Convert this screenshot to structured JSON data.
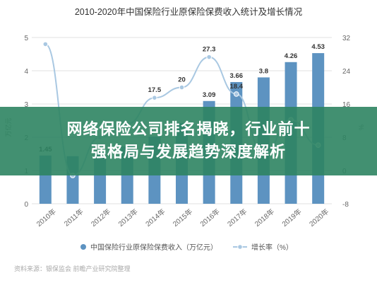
{
  "chart_data": {
    "type": "bar",
    "title": "2010-2020年中国保险行业原保险保费收入统计及增长情况",
    "categories": [
      "2010年",
      "2011年",
      "2012年",
      "2013年",
      "2014年",
      "2015年",
      "2016年",
      "2017年",
      "2018年",
      "2019年",
      "2020年"
    ],
    "series": [
      {
        "name": "中国保险行业原保险保费收入（万亿元）",
        "type": "bar",
        "axis": "left",
        "values": [
          1.45,
          1.43,
          1.55,
          1.72,
          2.02,
          2.43,
          3.09,
          3.66,
          3.8,
          4.26,
          4.53
        ],
        "labels": [
          "1.45",
          "",
          "",
          "",
          "",
          "",
          "3.09",
          "3.66",
          "3.8",
          "4.26",
          "4.53"
        ],
        "color": "#5d93c1"
      },
      {
        "name": "增长率（%）",
        "type": "line",
        "axis": "right",
        "values": [
          30.4,
          -1.2,
          8.0,
          11.2,
          17.5,
          20.0,
          27.3,
          18.4,
          3.9,
          12.2,
          6.1
        ],
        "labels": [
          "",
          "",
          "",
          "",
          "17.5",
          "20",
          "27.3",
          "18.4",
          "",
          "",
          ""
        ],
        "color": "#a9c8e2"
      }
    ],
    "ylabel": "万亿元",
    "ylabel_right": "%",
    "ylim": [
      0,
      5
    ],
    "ylim_right": [
      -8,
      32
    ],
    "yticks": [
      "0",
      "1",
      "2",
      "3",
      "4",
      "5"
    ],
    "yticks_right": [
      "-8",
      "0",
      "8",
      "16",
      "24",
      "32"
    ],
    "legend_position": "bottom",
    "grid": true,
    "source": "资料来源：银保监会 前瞻产业研究院整理"
  },
  "banner": {
    "line1": "网络保险公司排名揭晓，行业前十",
    "line2": "强格局与发展趋势深度解析",
    "color": "#2e8462"
  }
}
